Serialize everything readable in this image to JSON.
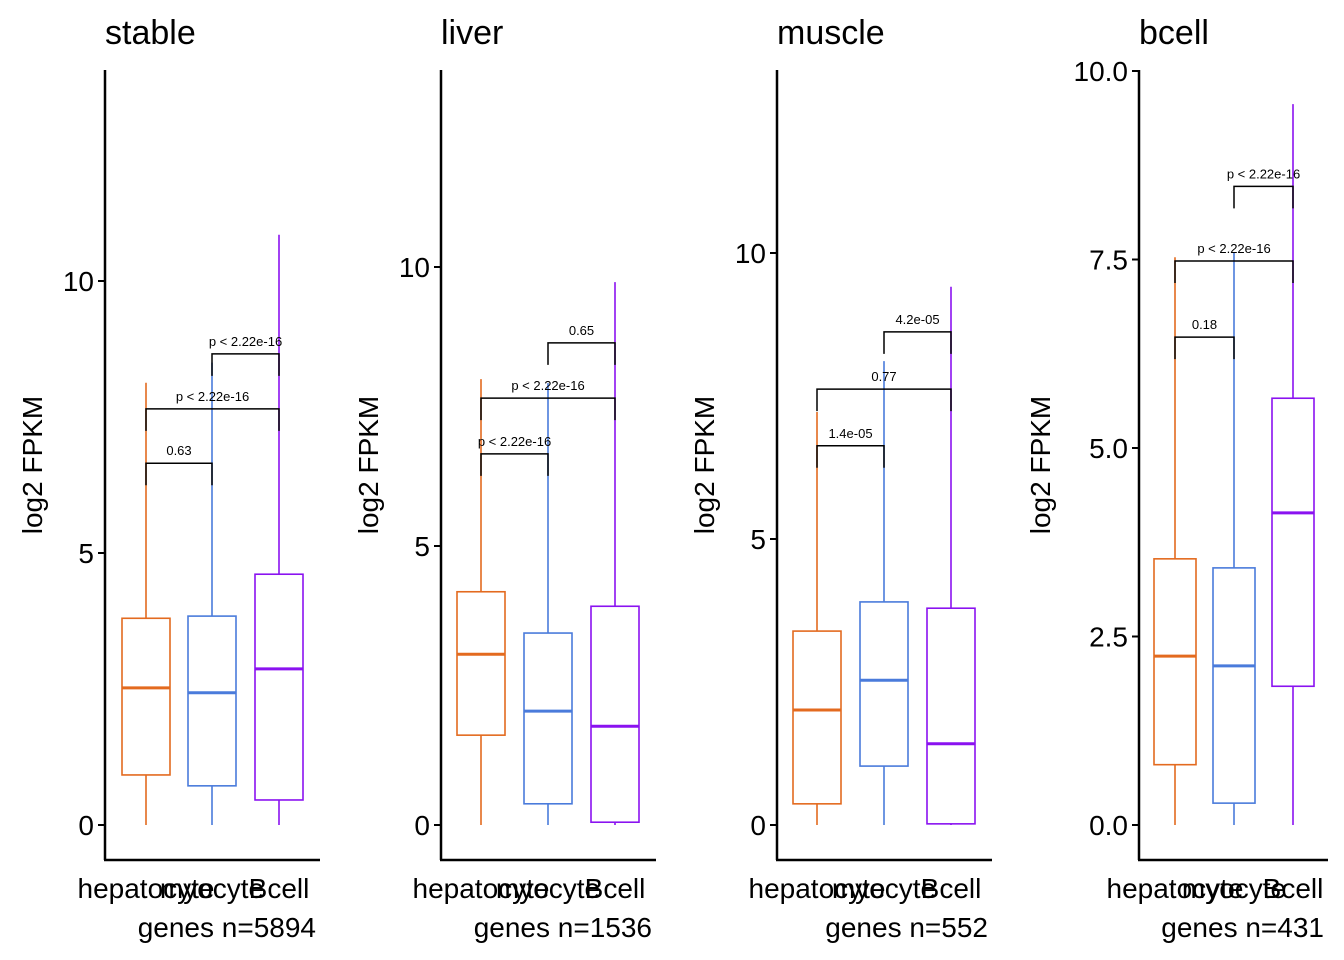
{
  "chart_data": [
    {
      "type": "boxplot",
      "title": "stable",
      "ylabel": "log2 FPKM",
      "ylim": [
        -0.6,
        13.9
      ],
      "yticks": [
        0,
        5,
        10
      ],
      "ytick_labels": [
        "0",
        "5",
        "10"
      ],
      "categories": [
        "hepatocyte",
        "myocyte",
        "Bcell"
      ],
      "footer": "genes n=5894",
      "boxes": [
        {
          "category": "hepatocyte",
          "min": 0,
          "q1": 0.92,
          "median": 2.52,
          "q3": 3.8,
          "max": 8.13
        },
        {
          "category": "myocyte",
          "min": 0,
          "q1": 0.72,
          "median": 2.43,
          "q3": 3.84,
          "max": 8.5
        },
        {
          "category": "Bcell",
          "min": 0,
          "q1": 0.46,
          "median": 2.87,
          "q3": 4.61,
          "max": 10.85
        }
      ],
      "comparisons": [
        {
          "from": "hepatocyte",
          "to": "myocyte",
          "y": 6.65,
          "label": "0.63"
        },
        {
          "from": "hepatocyte",
          "to": "Bcell",
          "y": 7.65,
          "label": "p < 2.22e-16"
        },
        {
          "from": "myocyte",
          "to": "Bcell",
          "y": 8.66,
          "label": "p < 2.22e-16"
        }
      ]
    },
    {
      "type": "boxplot",
      "title": "liver",
      "ylabel": "log2 FPKM",
      "ylim": [
        -0.6,
        14.0
      ],
      "yticks": [
        0,
        5,
        10
      ],
      "ytick_labels": [
        "0",
        "5",
        "10"
      ],
      "categories": [
        "hepatocyte",
        "myocyte",
        "Bcell"
      ],
      "footer": "genes n=1536",
      "boxes": [
        {
          "category": "hepatocyte",
          "min": 0,
          "q1": 1.61,
          "median": 3.06,
          "q3": 4.18,
          "max": 7.99
        },
        {
          "category": "myocyte",
          "min": 0,
          "q1": 0.38,
          "median": 2.04,
          "q3": 3.44,
          "max": 7.92
        },
        {
          "category": "Bcell",
          "min": 0,
          "q1": 0.05,
          "median": 1.77,
          "q3": 3.92,
          "max": 9.73
        }
      ],
      "comparisons": [
        {
          "from": "hepatocyte",
          "to": "myocyte",
          "y": 6.65,
          "label": "p < 2.22e-16"
        },
        {
          "from": "hepatocyte",
          "to": "Bcell",
          "y": 7.65,
          "label": "p < 2.22e-16"
        },
        {
          "from": "myocyte",
          "to": "Bcell",
          "y": 8.64,
          "label": "0.65"
        }
      ]
    },
    {
      "type": "boxplot",
      "title": "muscle",
      "ylabel": "log2 FPKM",
      "ylim": [
        -0.6,
        13.2
      ],
      "yticks": [
        0,
        5,
        10
      ],
      "ytick_labels": [
        "0",
        "5",
        "10"
      ],
      "categories": [
        "hepatocyte",
        "myocyte",
        "Bcell"
      ],
      "footer": "genes n=552",
      "boxes": [
        {
          "category": "hepatocyte",
          "min": 0,
          "q1": 0.37,
          "median": 2.01,
          "q3": 3.39,
          "max": 7.22
        },
        {
          "category": "myocyte",
          "min": 0,
          "q1": 1.03,
          "median": 2.53,
          "q3": 3.9,
          "max": 8.11
        },
        {
          "category": "Bcell",
          "min": 0,
          "q1": 0.02,
          "median": 1.42,
          "q3": 3.79,
          "max": 9.41
        }
      ],
      "comparisons": [
        {
          "from": "hepatocyte",
          "to": "myocyte",
          "y": 6.63,
          "label": "1.4e-05"
        },
        {
          "from": "hepatocyte",
          "to": "Bcell",
          "y": 7.62,
          "label": "0.77"
        },
        {
          "from": "myocyte",
          "to": "Bcell",
          "y": 8.62,
          "label": "4.2e-05"
        }
      ]
    },
    {
      "type": "boxplot",
      "title": "bcell",
      "ylabel": "log2 FPKM",
      "ylim": [
        -0.45,
        10.0
      ],
      "yticks": [
        0,
        2.5,
        5,
        7.5,
        10
      ],
      "ytick_labels": [
        "0.0",
        "2.5",
        "5.0",
        "7.5",
        "10.0"
      ],
      "categories": [
        "hepatocyte",
        "myocyte",
        "Bcell"
      ],
      "footer": "genes n=431",
      "boxes": [
        {
          "category": "hepatocyte",
          "min": 0,
          "q1": 0.8,
          "median": 2.24,
          "q3": 3.53,
          "max": 7.53
        },
        {
          "category": "myocyte",
          "min": 0,
          "q1": 0.29,
          "median": 2.11,
          "q3": 3.41,
          "max": 7.6
        },
        {
          "category": "Bcell",
          "min": 0,
          "q1": 1.84,
          "median": 4.14,
          "q3": 5.66,
          "max": 9.56
        }
      ],
      "comparisons": [
        {
          "from": "hepatocyte",
          "to": "myocyte",
          "y": 6.47,
          "label": "0.18"
        },
        {
          "from": "hepatocyte",
          "to": "Bcell",
          "y": 7.48,
          "label": "p < 2.22e-16"
        },
        {
          "from": "myocyte",
          "to": "Bcell",
          "y": 8.47,
          "label": "p < 2.22e-16"
        }
      ]
    }
  ],
  "colors": {
    "hepatocyte": "#E36A1F",
    "myocyte": "#4A7BDB",
    "Bcell": "#8A12F0",
    "axis": "#000000",
    "bracket": "#000000"
  }
}
